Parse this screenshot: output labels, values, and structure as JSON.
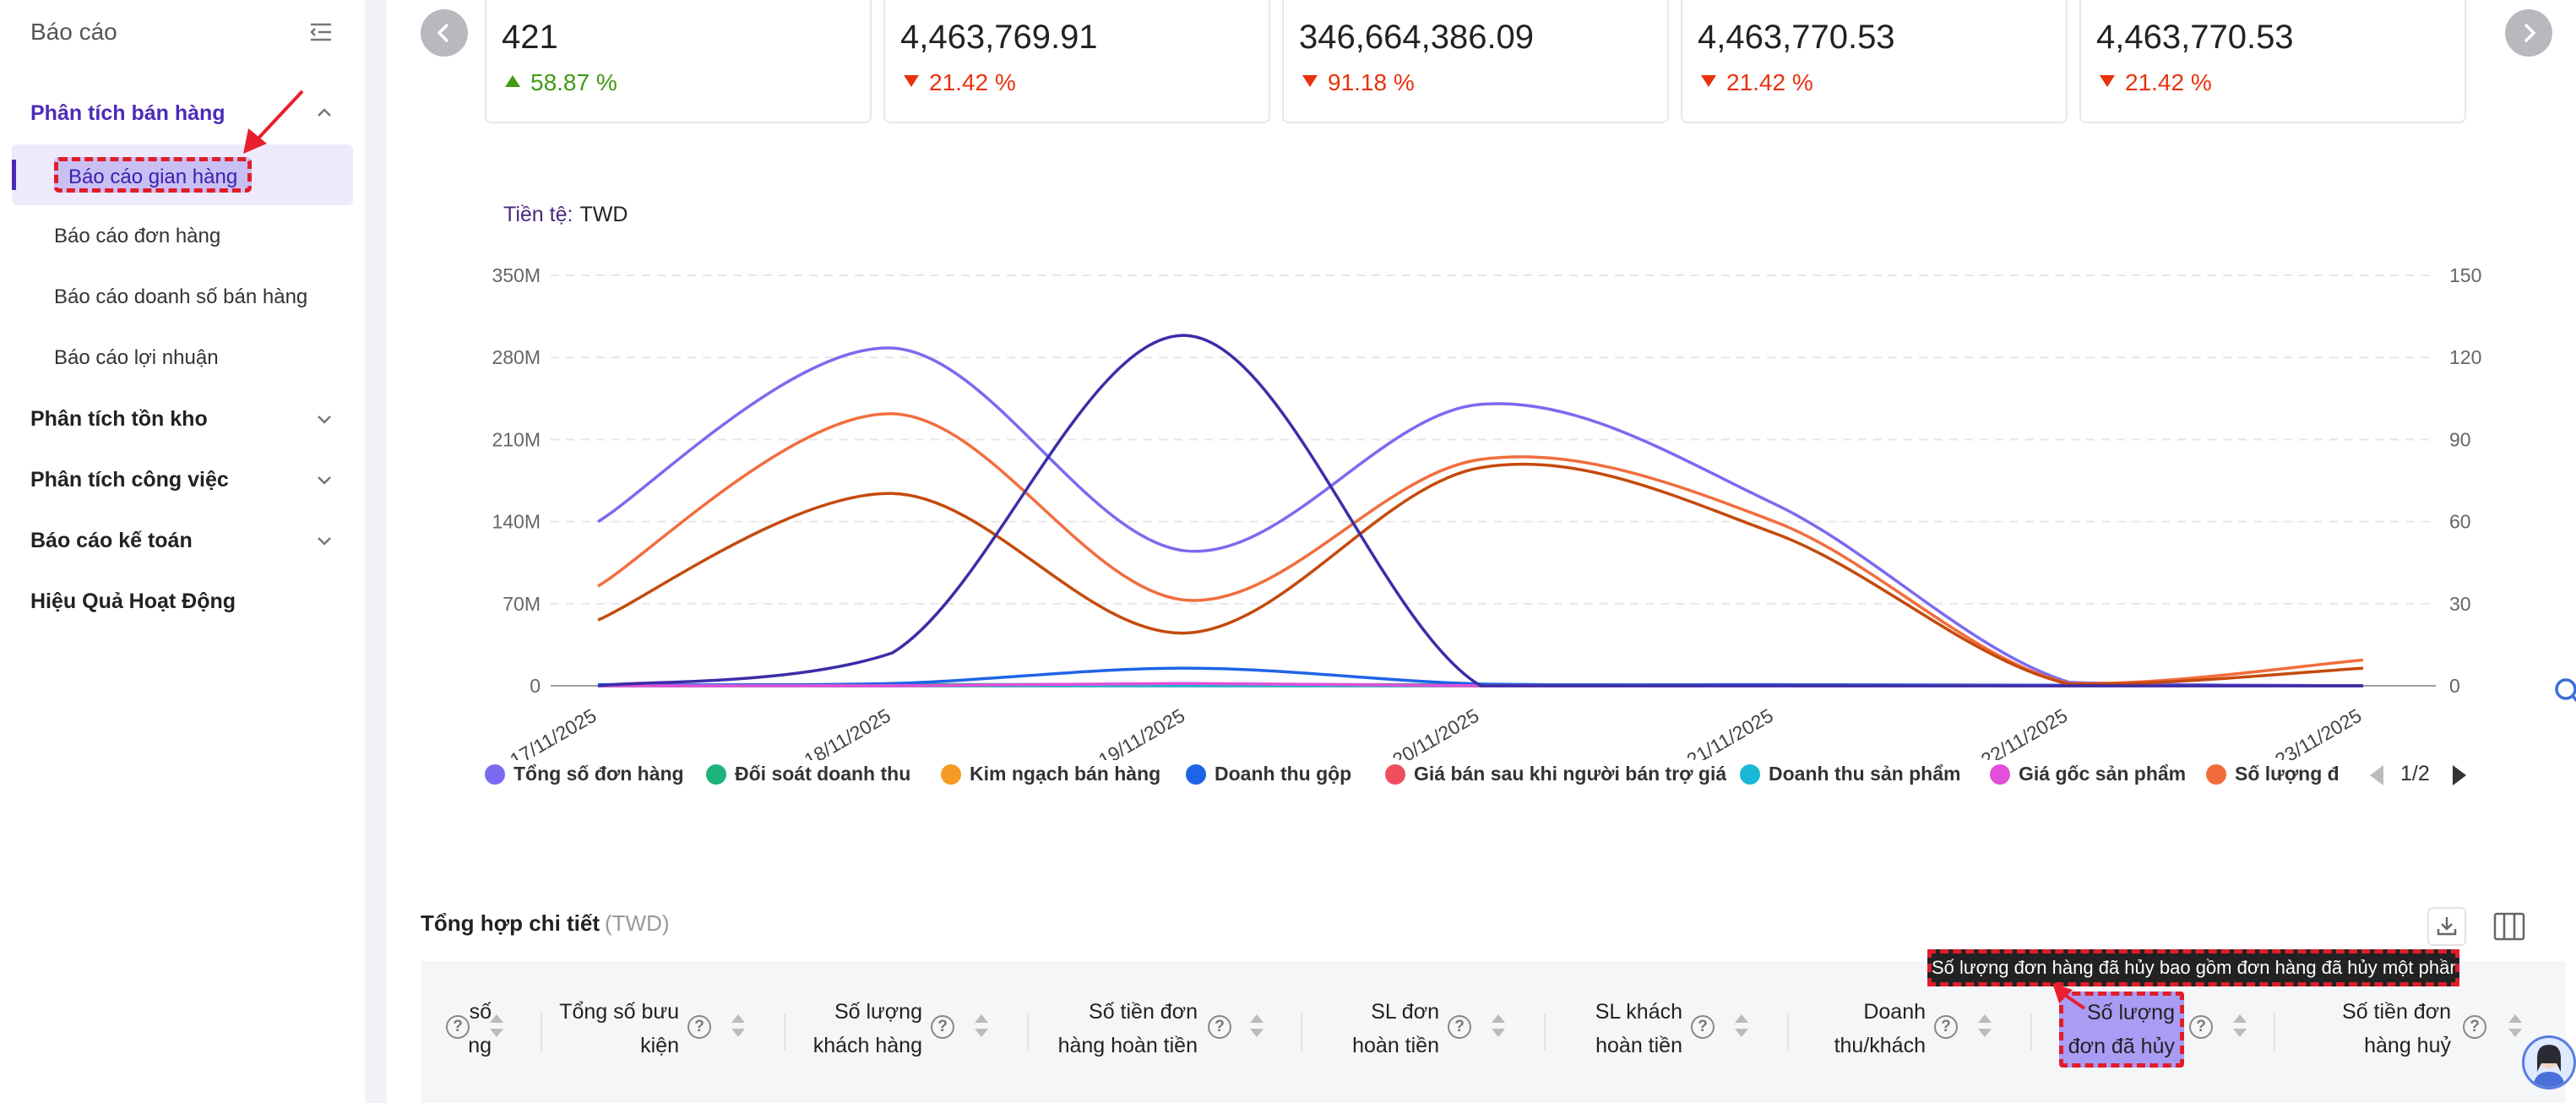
{
  "sidebar": {
    "title": "Báo cáo",
    "groups": [
      {
        "label": "Phân tích bán hàng"
      },
      {
        "label": "Phân tích tồn kho"
      },
      {
        "label": "Phân tích công việc"
      },
      {
        "label": "Báo cáo kế toán"
      },
      {
        "label": "Hiệu Quả Hoạt Động"
      }
    ],
    "items": [
      {
        "label": "Báo cáo gian hàng"
      },
      {
        "label": "Báo cáo đơn hàng"
      },
      {
        "label": "Báo cáo doanh số bán hàng"
      },
      {
        "label": "Báo cáo lợi nhuận"
      }
    ]
  },
  "kpis": [
    {
      "value": "421",
      "change": "58.87 %",
      "direction": "up"
    },
    {
      "value": "4,463,769.91",
      "change": "21.42 %",
      "direction": "down"
    },
    {
      "value": "346,664,386.09",
      "change": "91.18 %",
      "direction": "down"
    },
    {
      "value": "4,463,770.53",
      "change": "21.42 %",
      "direction": "down"
    },
    {
      "value": "4,463,770.53",
      "change": "21.42 %",
      "direction": "down"
    }
  ],
  "currency": {
    "label": "Tiền tệ:",
    "value": "TWD"
  },
  "chart_data": {
    "type": "line",
    "x": [
      "17/11/2025",
      "18/11/2025",
      "19/11/2025",
      "20/11/2025",
      "21/11/2025",
      "22/11/2025",
      "23/11/2025"
    ],
    "y_left_ticks": [
      "0",
      "70M",
      "140M",
      "210M",
      "280M",
      "350M"
    ],
    "y_right_ticks": [
      "0",
      "30",
      "60",
      "90",
      "120",
      "150"
    ],
    "ylim_left": [
      0,
      350000000
    ],
    "ylim_right": [
      0,
      150
    ],
    "grid": true,
    "series": [
      {
        "name": "Tổng số đơn hàng",
        "color": "#7a6af0",
        "axis": "left",
        "values": [
          140000000,
          288000000,
          115000000,
          240000000,
          155000000,
          3000000,
          0
        ]
      },
      {
        "name": "Đối soát doanh thu",
        "color": "#1db37c",
        "axis": "left",
        "values": [
          0,
          1000000,
          1000000,
          1000000,
          500000,
          0,
          0
        ]
      },
      {
        "name": "Kim ngạch bán hàng",
        "color": "#f59a23",
        "axis": "left",
        "values": [
          0,
          0,
          0,
          0,
          0,
          0,
          0
        ]
      },
      {
        "name": "Doanh thu gộp",
        "color": "#1e64e8",
        "axis": "left",
        "values": [
          1000000,
          2000000,
          15000000,
          1500000,
          1000000,
          500000,
          0
        ]
      },
      {
        "name": "Giá bán sau khi người bán trợ giá",
        "color": "#f04e5e",
        "axis": "left",
        "values": [
          0,
          0,
          0,
          0,
          0,
          0,
          0
        ]
      },
      {
        "name": "Doanh thu sản phẩm",
        "color": "#19b8d6",
        "axis": "left",
        "values": [
          0,
          0,
          0,
          0,
          0,
          0,
          0
        ]
      },
      {
        "name": "Giá gốc sản phẩm",
        "color": "#e24fd8",
        "axis": "left",
        "values": [
          0,
          0,
          2000000,
          0,
          0,
          0,
          0
        ]
      },
      {
        "name": "Số lượng đơn",
        "color": "#f26d3d",
        "axis": "left",
        "values": [
          85000000,
          232000000,
          73000000,
          193000000,
          140000000,
          2000000,
          22000000
        ]
      },
      {
        "name": "",
        "color": "#c44a0c",
        "axis": "left",
        "values": [
          56000000,
          164000000,
          45000000,
          186000000,
          130000000,
          1500000,
          15000000
        ]
      },
      {
        "name": "",
        "color": "#3b2ea8",
        "axis": "right",
        "values": [
          0,
          12,
          128,
          0,
          0,
          0,
          0
        ]
      }
    ],
    "legend_page": "1/2"
  },
  "detail": {
    "title": "Tổng hợp chi tiết",
    "currency": "(TWD)",
    "columns": [
      {
        "line1": "số",
        "line2": "ng"
      },
      {
        "line1": "Tổng số bưu",
        "line2": "kiện"
      },
      {
        "line1": "Số lượng",
        "line2": "khách hàng"
      },
      {
        "line1": "Số tiền đơn",
        "line2": "hàng hoàn tiền"
      },
      {
        "line1": "SL đơn",
        "line2": "hoàn tiền"
      },
      {
        "line1": "SL khách",
        "line2": "hoàn tiền"
      },
      {
        "line1": "Doanh",
        "line2": "thu/khách"
      },
      {
        "line1": "Số lượng",
        "line2": "đơn đã hủy"
      },
      {
        "line1": "Số tiền đơn",
        "line2": "hàng huỷ"
      }
    ],
    "tooltip": "Số lượng đơn hàng đã hủy bao gồm đơn hàng đã hủy một phần"
  }
}
